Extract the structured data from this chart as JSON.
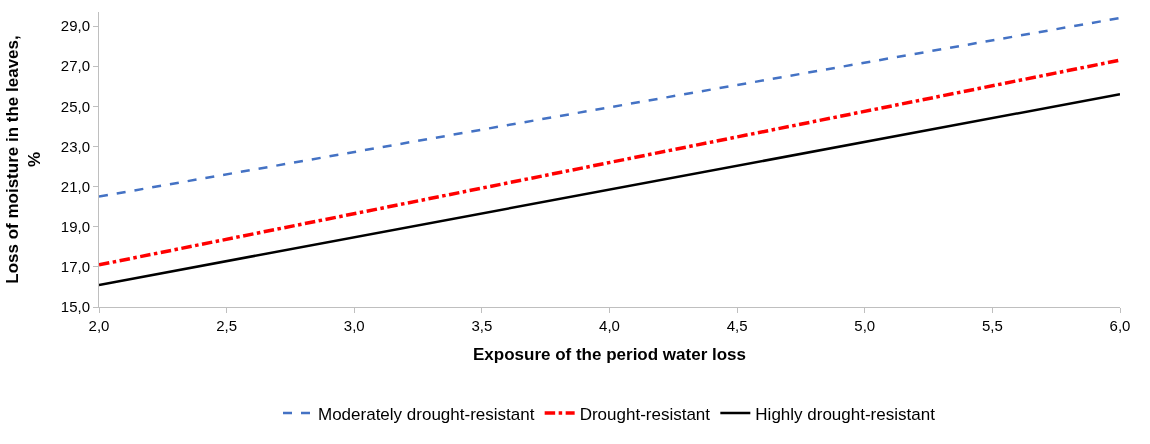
{
  "chart_data": {
    "type": "line",
    "xlabel": "Exposure of the period water loss",
    "ylabel": "Loss of moisture in the leaves,\n%",
    "x": [
      2.0,
      6.0
    ],
    "series": [
      {
        "name": "Moderately drought-resistant",
        "color": "#4472c4",
        "line_style": "dashed",
        "values": [
          20.5,
          29.4
        ]
      },
      {
        "name": "Drought-resistant",
        "color": "#ff0000",
        "line_style": "dashdot",
        "values": [
          17.1,
          27.3
        ]
      },
      {
        "name": "Highly drought-resistant",
        "color": "#000000",
        "line_style": "solid",
        "values": [
          16.1,
          25.6
        ]
      }
    ],
    "xlim": [
      2.0,
      6.0
    ],
    "xticks": [
      {
        "value": 2.0,
        "label": "2,0"
      },
      {
        "value": 2.5,
        "label": "2,5"
      },
      {
        "value": 3.0,
        "label": "3,0"
      },
      {
        "value": 3.5,
        "label": "3,5"
      },
      {
        "value": 4.0,
        "label": "4,0"
      },
      {
        "value": 4.5,
        "label": "4,5"
      },
      {
        "value": 5.0,
        "label": "5,0"
      },
      {
        "value": 5.5,
        "label": "5,5"
      },
      {
        "value": 6.0,
        "label": "6,0"
      }
    ],
    "ylim": [
      15.0,
      29.7
    ],
    "yticks": [
      {
        "value": 15,
        "label": "15,0"
      },
      {
        "value": 17,
        "label": "17,0"
      },
      {
        "value": 19,
        "label": "19,0"
      },
      {
        "value": 21,
        "label": "21,0"
      },
      {
        "value": 23,
        "label": "23,0"
      },
      {
        "value": 25,
        "label": "25,0"
      },
      {
        "value": 27,
        "label": "27,0"
      },
      {
        "value": 29,
        "label": "29,0"
      }
    ],
    "legend": "bottom",
    "marker": "none"
  }
}
